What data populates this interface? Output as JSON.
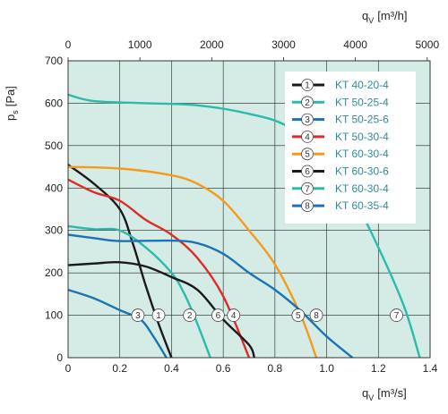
{
  "chart_data": {
    "type": "line",
    "bottom_axis": {
      "label_main": "q",
      "label_sub": "V",
      "label_unit": "[m³/s]",
      "range": [
        0,
        1.4
      ],
      "ticks": [
        "0",
        "0.2",
        "0.4",
        "0.6",
        "0.8",
        "1.0",
        "1.2",
        "1.4"
      ]
    },
    "top_axis": {
      "label_main": "q",
      "label_sub": "V",
      "label_unit": "[m³/h]",
      "range": [
        0,
        5040
      ],
      "ticks": [
        "0",
        "1000",
        "2000",
        "3000",
        "4000",
        "5000"
      ]
    },
    "y_axis": {
      "label_main": "p",
      "label_sub": "s",
      "label_unit": "[Pa]",
      "range": [
        0,
        700
      ],
      "ticks": [
        "0",
        "100",
        "200",
        "300",
        "400",
        "500",
        "600",
        "700"
      ]
    },
    "grid": true,
    "background": "#d5ece6",
    "legend_position": "top-right",
    "series": [
      {
        "id": "1",
        "name": "KT 40-20-4",
        "color": "#1a1a1a",
        "points": [
          [
            0,
            455
          ],
          [
            0.1,
            410
          ],
          [
            0.2,
            350
          ],
          [
            0.25,
            270
          ],
          [
            0.3,
            170
          ],
          [
            0.35,
            80
          ],
          [
            0.4,
            0
          ]
        ],
        "marker": [
          0.35,
          100
        ]
      },
      {
        "id": "2",
        "name": "KT 50-25-4",
        "color": "#2bbaab",
        "points": [
          [
            0,
            310
          ],
          [
            0.1,
            303
          ],
          [
            0.2,
            300
          ],
          [
            0.3,
            260
          ],
          [
            0.4,
            200
          ],
          [
            0.45,
            150
          ],
          [
            0.5,
            80
          ],
          [
            0.55,
            0
          ]
        ],
        "marker": [
          0.47,
          100
        ]
      },
      {
        "id": "3",
        "name": "KT 50-25-6",
        "color": "#1b73b3",
        "points": [
          [
            0,
            160
          ],
          [
            0.1,
            140
          ],
          [
            0.2,
            112
          ],
          [
            0.28,
            90
          ],
          [
            0.33,
            50
          ],
          [
            0.38,
            0
          ]
        ],
        "marker": [
          0.27,
          100
        ]
      },
      {
        "id": "4",
        "name": "KT 50-30-4",
        "color": "#e02a2a",
        "points": [
          [
            0,
            420
          ],
          [
            0.1,
            390
          ],
          [
            0.2,
            370
          ],
          [
            0.3,
            325
          ],
          [
            0.4,
            290
          ],
          [
            0.5,
            235
          ],
          [
            0.6,
            145
          ],
          [
            0.7,
            0
          ]
        ],
        "marker": [
          0.64,
          100
        ]
      },
      {
        "id": "5",
        "name": "KT 60-30-4",
        "color": "#f39b1d",
        "points": [
          [
            0,
            450
          ],
          [
            0.2,
            446
          ],
          [
            0.4,
            430
          ],
          [
            0.5,
            410
          ],
          [
            0.6,
            370
          ],
          [
            0.7,
            300
          ],
          [
            0.8,
            220
          ],
          [
            0.9,
            100
          ],
          [
            0.96,
            0
          ]
        ],
        "marker": [
          0.89,
          100
        ]
      },
      {
        "id": "6",
        "name": "KT 60-30-6",
        "color": "#1a1a1a",
        "points": [
          [
            0,
            218
          ],
          [
            0.1,
            222
          ],
          [
            0.2,
            225
          ],
          [
            0.3,
            215
          ],
          [
            0.4,
            190
          ],
          [
            0.5,
            160
          ],
          [
            0.6,
            90
          ],
          [
            0.7,
            30
          ],
          [
            0.72,
            0
          ]
        ],
        "marker": [
          0.58,
          100
        ]
      },
      {
        "id": "7",
        "name": "KT 60-30-4",
        "color": "#2bbaab",
        "points": [
          [
            0,
            620
          ],
          [
            0.1,
            605
          ],
          [
            0.3,
            600
          ],
          [
            0.5,
            595
          ],
          [
            0.7,
            575
          ],
          [
            0.85,
            545
          ],
          [
            1.0,
            470
          ],
          [
            1.1,
            380
          ],
          [
            1.2,
            260
          ],
          [
            1.3,
            120
          ],
          [
            1.36,
            0
          ]
        ],
        "marker": [
          1.27,
          100
        ]
      },
      {
        "id": "8",
        "name": "KT 60-35-4",
        "color": "#1b73b3",
        "points": [
          [
            0,
            290
          ],
          [
            0.1,
            282
          ],
          [
            0.2,
            275
          ],
          [
            0.4,
            276
          ],
          [
            0.5,
            270
          ],
          [
            0.6,
            245
          ],
          [
            0.7,
            200
          ],
          [
            0.8,
            160
          ],
          [
            0.9,
            110
          ],
          [
            1.0,
            50
          ],
          [
            1.1,
            0
          ]
        ],
        "marker": [
          0.96,
          100
        ]
      }
    ]
  }
}
